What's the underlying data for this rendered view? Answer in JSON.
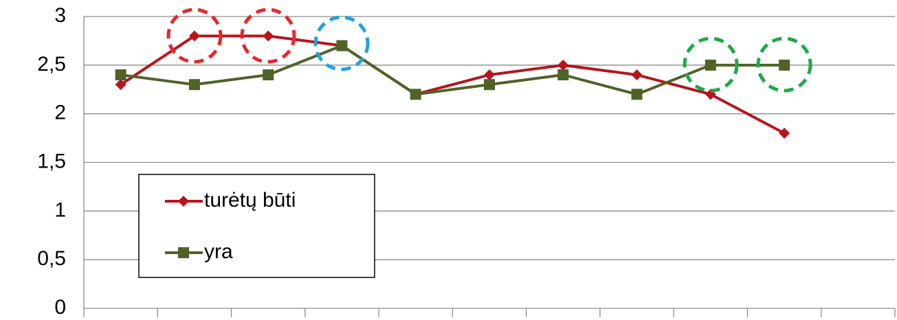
{
  "chart_data": {
    "type": "line",
    "categories": [
      null,
      null,
      null,
      null,
      null,
      null,
      null,
      null,
      null,
      null,
      null
    ],
    "series": [
      {
        "name": "turėtų būti",
        "color": "#b8141c",
        "marker": "diamond",
        "values": [
          2.3,
          2.8,
          2.8,
          2.7,
          2.2,
          2.4,
          2.5,
          2.4,
          2.2,
          1.8,
          null
        ]
      },
      {
        "name": "yra",
        "color": "#4f6228",
        "marker": "square",
        "values": [
          2.4,
          2.3,
          2.4,
          2.7,
          2.2,
          2.3,
          2.4,
          2.2,
          2.5,
          2.5,
          null
        ]
      }
    ],
    "ylim": [
      0,
      3
    ],
    "yticks": [
      0,
      {
        "value": 0.5,
        "label": "0,5"
      },
      1,
      {
        "value": 1.5,
        "label": "1,5"
      },
      2,
      {
        "value": 2.5,
        "label": "2,5"
      },
      3
    ],
    "grid": true
  }
}
